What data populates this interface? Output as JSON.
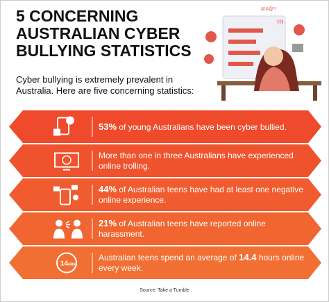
{
  "title_lines": [
    "5 CONCERNING",
    "AUSTRALIAN CYBER",
    "BULLYING STATISTICS"
  ],
  "subtitle_lines": [
    "Cyber bullying is extremely prevalent in",
    "Australia. Here are five concerning statistics:"
  ],
  "illustration_texts": [
    "&!#@*!",
    "!!!"
  ],
  "items": [
    {
      "color": "#ee4a2b",
      "parts": [
        {
          "text": "53%",
          "bold": true
        },
        {
          "text": " of young Australians have been cyber bullied.",
          "bold": false
        }
      ]
    },
    {
      "color": "#ef532d",
      "parts": [
        {
          "text": "More than one in three Australians have experienced online trolling.",
          "bold": false
        }
      ]
    },
    {
      "color": "#f05c2f",
      "parts": [
        {
          "text": "44%",
          "bold": true
        },
        {
          "text": " of Australian teens have had at least one negative online experience.",
          "bold": false
        }
      ]
    },
    {
      "color": "#f16531",
      "parts": [
        {
          "text": "21%",
          "bold": true
        },
        {
          "text": " of Australian teens have reported online harassment.",
          "bold": false
        }
      ]
    },
    {
      "color": "#f26f33",
      "parts": [
        {
          "text": "Australian teens spend an average of ",
          "bold": false
        },
        {
          "text": "14.4",
          "bold": true
        },
        {
          "text": " hours online every week.",
          "bold": false
        }
      ],
      "icon_texts": [
        "14",
        "HRS"
      ]
    }
  ],
  "source": "Source: Take a Tumble"
}
